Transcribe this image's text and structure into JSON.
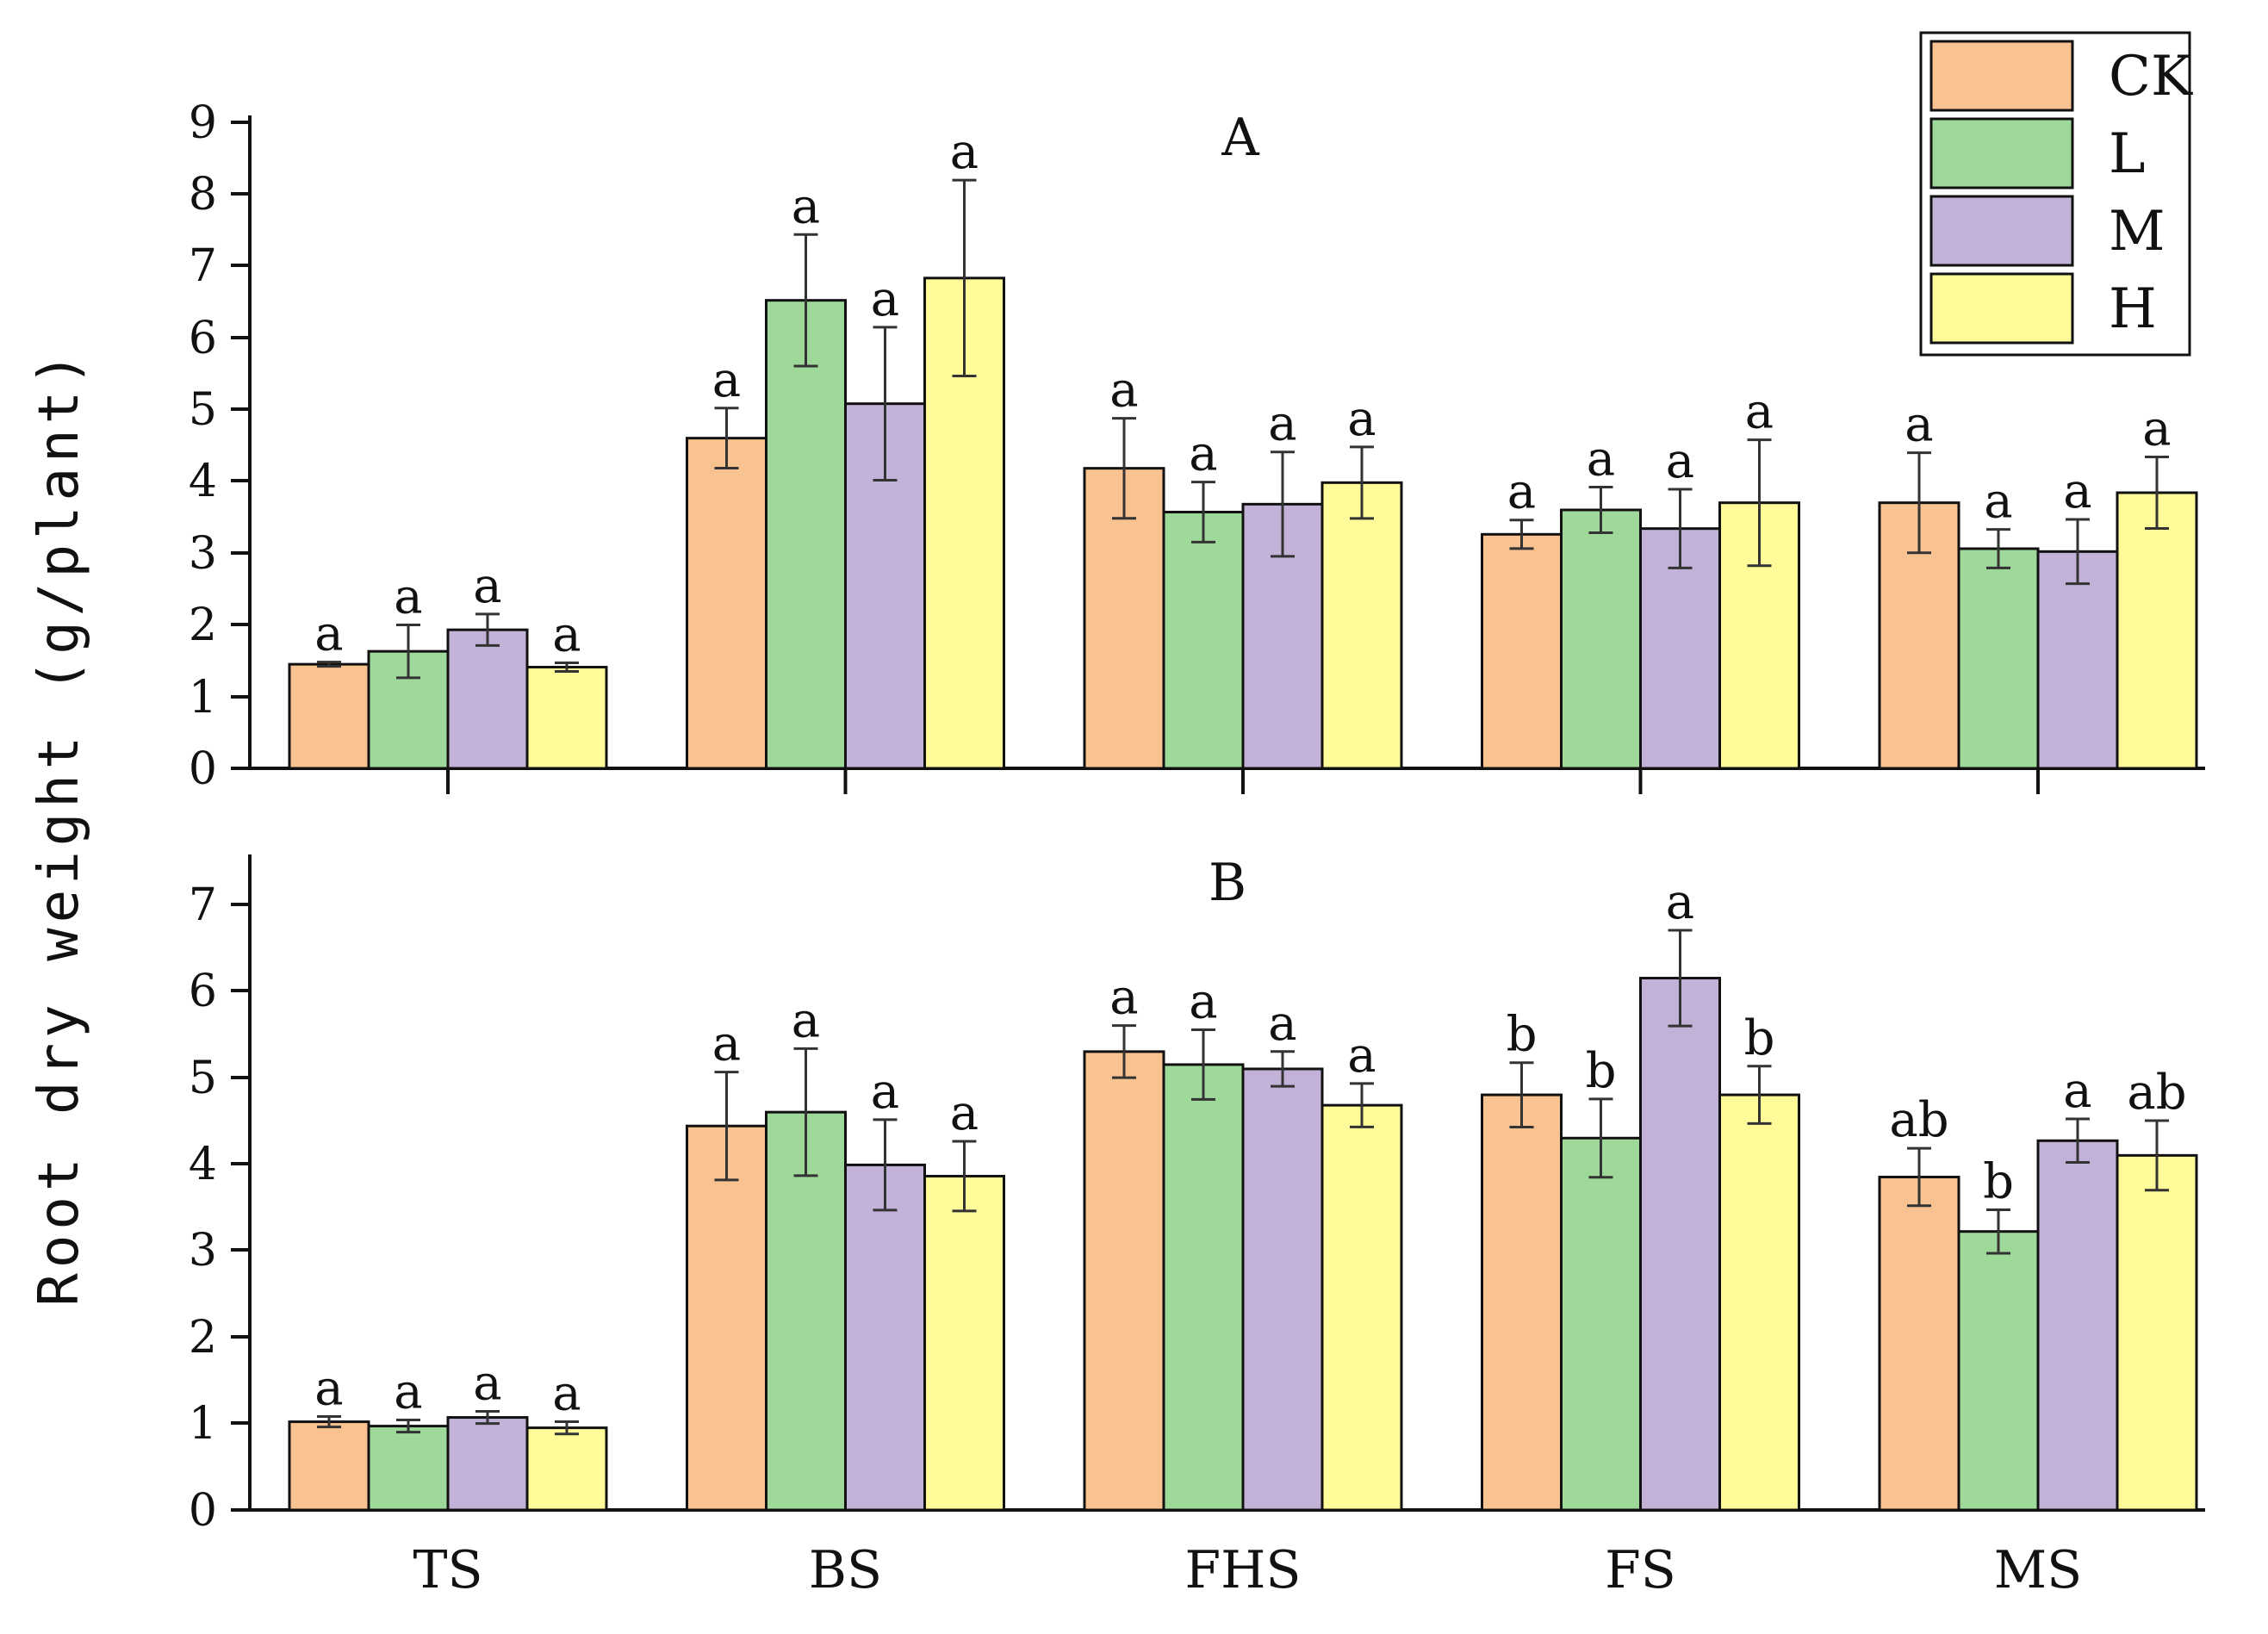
{
  "chart_data": {
    "type": "bar",
    "ylabel": "Root dry weight (g/plant)",
    "categories": [
      "TS",
      "BS",
      "FHS",
      "FS",
      "MS"
    ],
    "series_names": [
      "CK",
      "L",
      "M",
      "H"
    ],
    "colors": [
      "#F9C391",
      "#9ED99A",
      "#C3B2D8",
      "#FFFB99"
    ],
    "legend_position": "top-right",
    "panels": [
      {
        "label": "A",
        "ylim": [
          0,
          9
        ],
        "yticks": [
          "0",
          "1",
          "2",
          "3",
          "4",
          "5",
          "6",
          "7",
          "8",
          "9"
        ],
        "series": [
          {
            "name": "CK",
            "values": [
              1.45,
              4.6,
              4.18,
              3.26,
              3.7
            ],
            "errors": [
              0.03,
              0.42,
              0.7,
              0.2,
              0.7
            ],
            "letters": [
              "a",
              "a",
              "a",
              "a",
              "a"
            ]
          },
          {
            "name": "L",
            "values": [
              1.63,
              6.52,
              3.57,
              3.6,
              3.06
            ],
            "errors": [
              0.37,
              0.92,
              0.42,
              0.32,
              0.27
            ],
            "letters": [
              "a",
              "a",
              "a",
              "a",
              "a"
            ]
          },
          {
            "name": "M",
            "values": [
              1.93,
              5.08,
              3.68,
              3.34,
              3.02
            ],
            "errors": [
              0.22,
              1.07,
              0.73,
              0.55,
              0.45
            ],
            "letters": [
              "a",
              "a",
              "a",
              "a",
              "a"
            ]
          },
          {
            "name": "H",
            "values": [
              1.41,
              6.83,
              3.98,
              3.7,
              3.84
            ],
            "errors": [
              0.06,
              1.37,
              0.5,
              0.88,
              0.5
            ],
            "letters": [
              "a",
              "a",
              "a",
              "a",
              "a"
            ]
          }
        ]
      },
      {
        "label": "B",
        "ylim": [
          0,
          7.5
        ],
        "yticks": [
          "0",
          "1",
          "2",
          "3",
          "4",
          "5",
          "6",
          "7"
        ],
        "series": [
          {
            "name": "CK",
            "values": [
              1.02,
              4.44,
              5.3,
              4.8,
              3.85
            ],
            "errors": [
              0.06,
              0.62,
              0.3,
              0.37,
              0.33
            ],
            "letters": [
              "a",
              "a",
              "a",
              "b",
              "ab"
            ]
          },
          {
            "name": "L",
            "values": [
              0.97,
              4.6,
              5.15,
              4.3,
              3.22
            ],
            "errors": [
              0.07,
              0.73,
              0.4,
              0.45,
              0.25
            ],
            "letters": [
              "a",
              "a",
              "a",
              "b",
              "b"
            ]
          },
          {
            "name": "M",
            "values": [
              1.07,
              3.99,
              5.1,
              6.15,
              4.27
            ],
            "errors": [
              0.07,
              0.52,
              0.2,
              0.55,
              0.25
            ],
            "letters": [
              "a",
              "a",
              "a",
              "a",
              "a"
            ]
          },
          {
            "name": "H",
            "values": [
              0.95,
              3.86,
              4.68,
              4.8,
              4.1
            ],
            "errors": [
              0.07,
              0.4,
              0.25,
              0.33,
              0.4
            ],
            "letters": [
              "a",
              "a",
              "a",
              "b",
              "ab"
            ]
          }
        ]
      }
    ]
  }
}
